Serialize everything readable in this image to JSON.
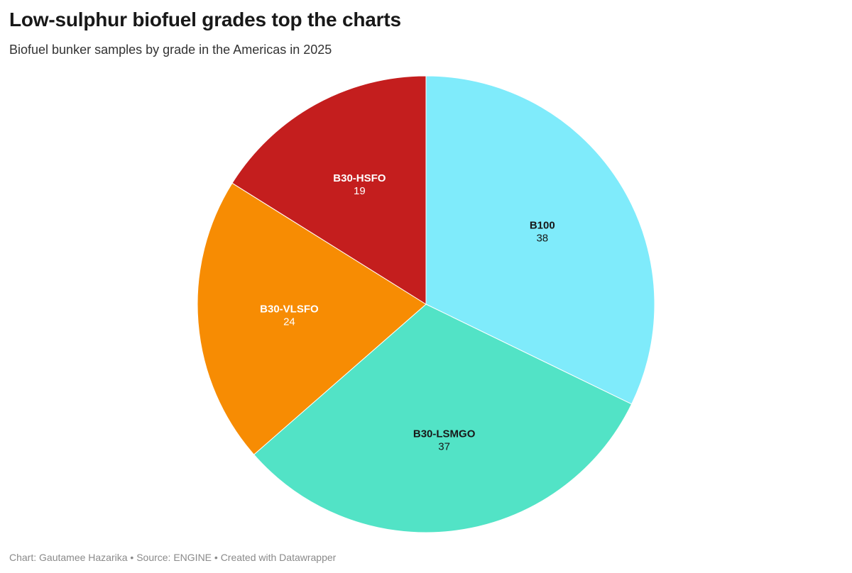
{
  "header": {
    "title": "Low-sulphur biofuel grades top the charts",
    "subtitle": "Biofuel bunker samples by grade in the Americas in 2025"
  },
  "footer": {
    "credit": "Chart: Gautamee Hazarika • Source: ENGINE • Created with Datawrapper"
  },
  "chart_data": {
    "type": "pie",
    "title": "Low-sulphur biofuel grades top the charts",
    "subtitle": "Biofuel bunker samples by grade in the Americas in 2025",
    "slices": [
      {
        "label": "B100",
        "value": 38,
        "color": "#7FEBFB",
        "text_color": "#181818"
      },
      {
        "label": "B30-LSMGO",
        "value": 37,
        "color": "#52E3C6",
        "text_color": "#181818"
      },
      {
        "label": "B30-VLSFO",
        "value": 24,
        "color": "#F78C03",
        "text_color": "#ffffff"
      },
      {
        "label": "B30-HSFO",
        "value": 19,
        "color": "#C41E1E",
        "text_color": "#ffffff"
      }
    ],
    "start": "12 o'clock",
    "direction": "clockwise",
    "legend": "none"
  }
}
